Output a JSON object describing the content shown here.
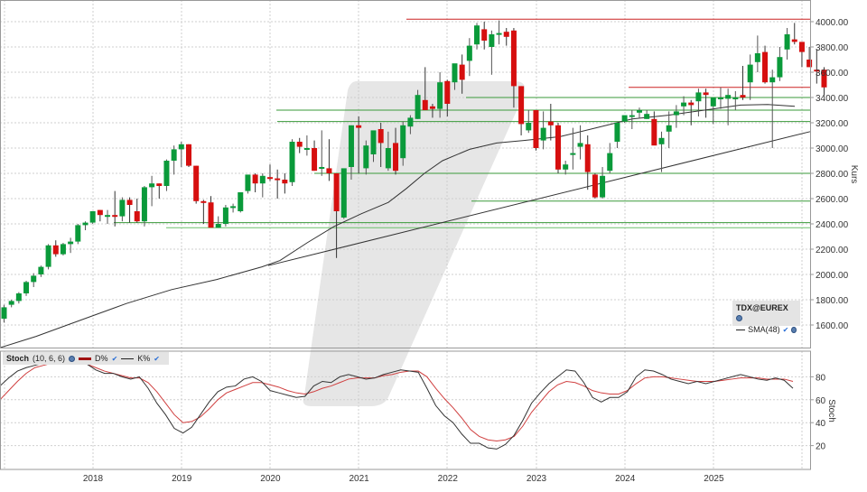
{
  "chart_data": {
    "type": "candlestick",
    "title": "TDX@EUREX",
    "instrument": "TDX@EUREX",
    "interval": "monthly",
    "main_panel": {
      "ylabel": "Kurs",
      "ylim": [
        1450,
        4130
      ],
      "yticks": [
        "1600.00",
        "1800.00",
        "2000.00",
        "2200.00",
        "2400.00",
        "2600.00",
        "2800.00",
        "3000.00",
        "3200.00",
        "3400.00",
        "3600.00",
        "3800.00",
        "4000.00"
      ],
      "grid": true,
      "legend": {
        "title": "TDX@EUREX",
        "entries": [
          {
            "name": "SMA(48)",
            "color": "#333333"
          }
        ]
      },
      "start": "2017-01",
      "candles": [
        [
          1650,
          1760,
          1620,
          1740
        ],
        [
          1760,
          1800,
          1740,
          1790
        ],
        [
          1790,
          1860,
          1770,
          1850
        ],
        [
          1850,
          1950,
          1830,
          1940
        ],
        [
          1940,
          2010,
          1900,
          1990
        ],
        [
          2000,
          2070,
          1980,
          2060
        ],
        [
          2060,
          2240,
          2040,
          2230
        ],
        [
          2230,
          2270,
          2140,
          2160
        ],
        [
          2160,
          2250,
          2150,
          2240
        ],
        [
          2240,
          2290,
          2170,
          2260
        ],
        [
          2260,
          2400,
          2240,
          2390
        ],
        [
          2390,
          2420,
          2350,
          2410
        ],
        [
          2410,
          2480,
          2400,
          2500
        ],
        [
          2510,
          2510,
          2420,
          2470
        ],
        [
          2470,
          2510,
          2400,
          2470
        ],
        [
          2470,
          2660,
          2380,
          2460
        ],
        [
          2460,
          2610,
          2420,
          2590
        ],
        [
          2590,
          2610,
          2410,
          2550
        ],
        [
          2500,
          2600,
          2410,
          2420
        ],
        [
          2420,
          2700,
          2380,
          2690
        ],
        [
          2690,
          2780,
          2540,
          2720
        ],
        [
          2720,
          2720,
          2600,
          2700
        ],
        [
          2700,
          2910,
          2660,
          2900
        ],
        [
          2900,
          3020,
          2790,
          2990
        ],
        [
          2990,
          3050,
          2850,
          3030
        ],
        [
          3030,
          3030,
          2850,
          2860
        ],
        [
          2860,
          2860,
          2560,
          2580
        ],
        [
          2580,
          2590,
          2400,
          2570
        ],
        [
          2570,
          2620,
          2400,
          2370
        ],
        [
          2370,
          2460,
          2370,
          2400
        ],
        [
          2400,
          2550,
          2380,
          2530
        ],
        [
          2540,
          2560,
          2490,
          2540
        ],
        [
          2500,
          2650,
          2490,
          2650
        ],
        [
          2660,
          2770,
          2640,
          2790
        ],
        [
          2790,
          2800,
          2650,
          2720
        ],
        [
          2720,
          2800,
          2610,
          2780
        ],
        [
          2770,
          2870,
          2740,
          2760
        ],
        [
          2760,
          2830,
          2600,
          2750
        ],
        [
          2750,
          2800,
          2640,
          2720
        ],
        [
          2730,
          3070,
          2700,
          3050
        ],
        [
          3050,
          3080,
          2960,
          3010
        ],
        [
          3000,
          3100,
          2940,
          3000
        ],
        [
          3000,
          3060,
          2820,
          2820
        ],
        [
          2840,
          3140,
          2780,
          2850
        ],
        [
          2840,
          3070,
          2740,
          2800
        ],
        [
          2800,
          2800,
          2130,
          2500
        ],
        [
          2450,
          2720,
          2440,
          2840
        ],
        [
          2850,
          3180,
          2750,
          3180
        ],
        [
          3180,
          3250,
          2800,
          3160
        ],
        [
          2840,
          3060,
          2790,
          3020
        ],
        [
          2950,
          3120,
          2890,
          3140
        ],
        [
          3150,
          3200,
          2850,
          3040
        ],
        [
          2840,
          3130,
          2820,
          3000
        ],
        [
          3040,
          3160,
          2790,
          2820
        ],
        [
          2920,
          3210,
          2860,
          3180
        ],
        [
          3170,
          3260,
          3110,
          3240
        ],
        [
          3230,
          3460,
          3230,
          3420
        ],
        [
          3380,
          3640,
          3310,
          3300
        ],
        [
          3330,
          3350,
          3240,
          3310
        ],
        [
          3310,
          3600,
          3240,
          3520
        ],
        [
          3530,
          3540,
          3250,
          3350
        ],
        [
          3520,
          3660,
          3460,
          3670
        ],
        [
          3660,
          3740,
          3430,
          3540
        ],
        [
          3690,
          3870,
          3570,
          3810
        ],
        [
          3820,
          3990,
          3780,
          3970
        ],
        [
          3940,
          4000,
          3780,
          3850
        ],
        [
          3800,
          3930,
          3580,
          3900
        ],
        [
          3900,
          4010,
          3820,
          3910
        ],
        [
          3920,
          3950,
          3810,
          3880
        ],
        [
          3930,
          3950,
          3320,
          3490
        ],
        [
          3490,
          3490,
          3100,
          3190
        ],
        [
          3140,
          3300,
          3120,
          3200
        ],
        [
          3300,
          3300,
          2980,
          3000
        ],
        [
          3060,
          3290,
          2990,
          3160
        ],
        [
          3210,
          3350,
          3060,
          3180
        ],
        [
          3180,
          3200,
          2800,
          2830
        ],
        [
          2830,
          2900,
          2790,
          2870
        ],
        [
          2960,
          3160,
          2830,
          2960
        ],
        [
          3010,
          3180,
          2910,
          3040
        ],
        [
          3030,
          3100,
          2670,
          2810
        ],
        [
          2790,
          2800,
          2600,
          2610
        ],
        [
          2610,
          2850,
          2600,
          2780
        ],
        [
          2820,
          3040,
          2800,
          2960
        ],
        [
          3050,
          3200,
          3000,
          3200
        ],
        [
          3210,
          3250,
          3200,
          3260
        ],
        [
          3260,
          3300,
          3150,
          3260
        ],
        [
          3280,
          3320,
          3240,
          3300
        ],
        [
          3230,
          3300,
          3230,
          3270
        ],
        [
          3230,
          3290,
          3040,
          3020
        ],
        [
          3030,
          3130,
          2810,
          3080
        ],
        [
          3130,
          3290,
          3000,
          3180
        ],
        [
          3260,
          3340,
          3160,
          3290
        ],
        [
          3330,
          3410,
          3260,
          3360
        ],
        [
          3360,
          3380,
          3180,
          3340
        ],
        [
          3370,
          3470,
          3250,
          3440
        ],
        [
          3440,
          3470,
          3240,
          3420
        ],
        [
          3330,
          3390,
          3190,
          3400
        ],
        [
          3400,
          3480,
          3310,
          3400
        ],
        [
          3390,
          3470,
          3180,
          3420
        ],
        [
          3390,
          3450,
          3300,
          3400
        ],
        [
          3420,
          3650,
          3380,
          3400
        ],
        [
          3520,
          3740,
          3380,
          3660
        ],
        [
          3680,
          3890,
          3600,
          3750
        ],
        [
          3760,
          3810,
          3510,
          3520
        ],
        [
          3520,
          3620,
          3000,
          3560
        ],
        [
          3560,
          3800,
          3530,
          3720
        ],
        [
          3780,
          3950,
          3700,
          3900
        ],
        [
          3860,
          3990,
          3820,
          3840
        ],
        [
          3840,
          3840,
          3640,
          3760
        ],
        [
          3700,
          3800,
          3650,
          3640
        ],
        [
          3620,
          3780,
          3510,
          3610
        ],
        [
          3620,
          3640,
          3420,
          3480
        ]
      ],
      "sma48": [
        [
          0,
          1420
        ],
        [
          40,
          1510
        ],
        [
          90,
          1640
        ],
        [
          140,
          1770
        ],
        [
          190,
          1880
        ],
        [
          240,
          1960
        ],
        [
          290,
          2060
        ],
        [
          310,
          2110
        ],
        [
          340,
          2250
        ],
        [
          370,
          2380
        ],
        [
          400,
          2480
        ],
        [
          430,
          2570
        ],
        [
          450,
          2680
        ],
        [
          470,
          2800
        ],
        [
          490,
          2900
        ],
        [
          520,
          2990
        ],
        [
          550,
          3040
        ],
        [
          580,
          3060
        ],
        [
          620,
          3090
        ],
        [
          660,
          3160
        ],
        [
          700,
          3230
        ],
        [
          740,
          3260
        ],
        [
          790,
          3310
        ],
        [
          820,
          3340
        ],
        [
          850,
          3345
        ],
        [
          880,
          3330
        ]
      ],
      "trendlines": [
        {
          "type": "diagonal",
          "from": [
            297,
            2070
          ],
          "to": [
            897,
            3130
          ],
          "color": "#333333"
        }
      ],
      "horizontal_levels": [
        {
          "value": 4020,
          "x_from": 450,
          "color": "#cc2222"
        },
        {
          "value": 3480,
          "x_from": 696,
          "color": "#cc2222"
        },
        {
          "value": 3400,
          "x_from": 516,
          "color": "#3a9a3a"
        },
        {
          "value": 3300,
          "x_from": 306,
          "color": "#3a9a3a"
        },
        {
          "value": 3210,
          "x_from": 307,
          "color": "#3a9a3a"
        },
        {
          "value": 2800,
          "x_from": 348,
          "color": "#3a9a3a"
        },
        {
          "value": 2580,
          "x_from": 522,
          "color": "#3a9a3a"
        },
        {
          "value": 2410,
          "x_from": 126,
          "color": "#3a9a3a"
        },
        {
          "value": 2370,
          "x_from": 184,
          "color": "#6cc06c"
        }
      ]
    },
    "stoch_panel": {
      "ylabel": "Stoch",
      "ylim": [
        0,
        100
      ],
      "yticks": [
        "20",
        "40",
        "60",
        "80"
      ],
      "legend": {
        "title": "Stoch",
        "params": "(10, 6, 6)",
        "entries": [
          {
            "name": "D%",
            "color": "#a01010"
          },
          {
            "name": "K%",
            "color": "#222222"
          }
        ]
      },
      "k_percent": [
        72,
        79,
        85,
        88,
        90,
        92,
        93,
        94,
        93,
        92,
        91,
        86,
        83,
        83,
        80,
        78,
        80,
        70,
        57,
        47,
        35,
        31,
        36,
        47,
        58,
        67,
        71,
        72,
        78,
        80,
        76,
        68,
        66,
        64,
        62,
        63,
        72,
        76,
        75,
        80,
        82,
        80,
        78,
        79,
        82,
        84,
        86,
        85,
        84,
        70,
        55,
        46,
        40,
        30,
        22,
        22,
        18,
        17,
        21,
        29,
        42,
        57,
        66,
        74,
        80,
        86,
        85,
        75,
        62,
        58,
        62,
        62,
        67,
        80,
        86,
        85,
        82,
        78,
        76,
        74,
        76,
        74,
        76,
        78,
        80,
        82,
        80,
        78,
        77,
        79,
        77,
        70
      ],
      "d_percent": [
        60,
        68,
        76,
        83,
        88,
        90,
        92,
        93,
        93,
        92,
        91,
        88,
        85,
        83,
        81,
        79,
        79,
        75,
        67,
        57,
        47,
        40,
        41,
        45,
        52,
        60,
        66,
        69,
        72,
        75,
        75,
        73,
        71,
        68,
        66,
        65,
        67,
        70,
        72,
        75,
        78,
        79,
        79,
        79,
        81,
        82,
        84,
        85,
        85,
        80,
        70,
        61,
        53,
        44,
        34,
        28,
        25,
        24,
        25,
        28,
        37,
        49,
        58,
        67,
        73,
        76,
        75,
        72,
        68,
        66,
        65,
        65,
        68,
        74,
        79,
        80,
        80,
        79,
        78,
        77,
        76,
        76,
        76,
        77,
        78,
        79,
        79,
        79,
        78,
        78,
        78,
        76
      ]
    },
    "xaxis": {
      "ticks": [
        "2018",
        "2019",
        "2020",
        "2021",
        "2022",
        "2023",
        "2024",
        "2025"
      ]
    },
    "colors": {
      "up": "#0a9a3a",
      "down": "#d60f0f",
      "grid": "#cfcfcf",
      "sma": "#333333",
      "watermark": "#e6e6e6"
    }
  },
  "labels": {
    "legend_main_title": "TDX@EUREX",
    "legend_main_sma": "SMA(48)",
    "legend_stoch_title": "Stoch",
    "legend_stoch_params": "(10, 6, 6)",
    "legend_stoch_d": "D%",
    "legend_stoch_k": "K%",
    "kurs_axis": "Kurs",
    "stoch_axis": "Stoch"
  }
}
